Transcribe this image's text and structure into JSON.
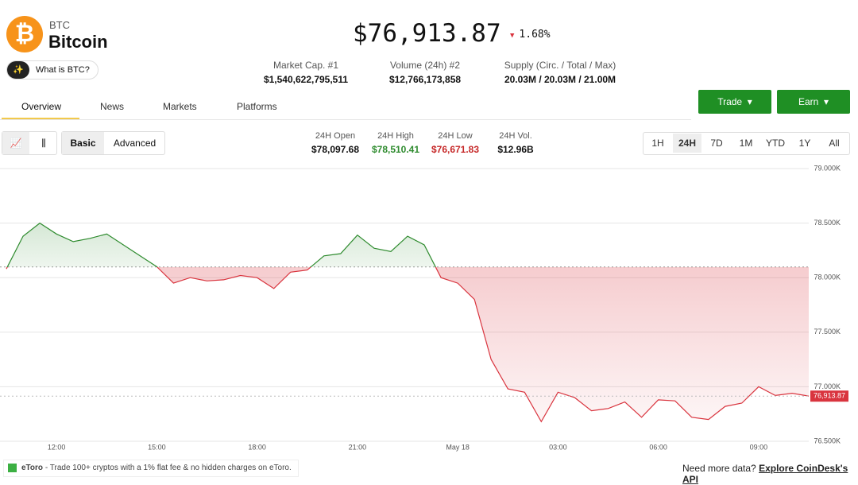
{
  "header": {
    "symbol": "BTC",
    "name": "Bitcoin",
    "ask": "What is BTC?",
    "price": "$76,913.87",
    "change": "1.68%"
  },
  "stats": [
    {
      "label": "Market Cap. #1",
      "value": "$1,540,622,795,511"
    },
    {
      "label": "Volume (24h) #2",
      "value": "$12,766,173,858"
    },
    {
      "label": "Supply (Circ. / Total / Max)",
      "value": "20.03M / 20.03M / 21.00M"
    }
  ],
  "tabs": [
    "Overview",
    "News",
    "Markets",
    "Platforms"
  ],
  "buttons": [
    "Trade",
    "Earn"
  ],
  "modes": [
    "Basic",
    "Advanced"
  ],
  "range_stats": [
    {
      "label": "24H Open",
      "value": "$78,097.68"
    },
    {
      "label": "24H High",
      "value": "$78,510.41"
    },
    {
      "label": "24H Low",
      "value": "$76,671.83"
    },
    {
      "label": "24H Vol.",
      "value": "$12.96B"
    }
  ],
  "ranges": [
    "1H",
    "24H",
    "7D",
    "1M",
    "YTD",
    "1Y",
    "All"
  ],
  "chart_data": {
    "type": "line",
    "categories": [
      null,
      null,
      null,
      "12:00",
      null,
      null,
      null,
      null,
      null,
      "15:00",
      null,
      null,
      null,
      null,
      null,
      "18:00",
      null,
      null,
      null,
      null,
      null,
      "21:00",
      null,
      null,
      null,
      null,
      null,
      "May 18",
      null,
      null,
      null,
      null,
      null,
      "03:00",
      null,
      null,
      null,
      null,
      null,
      "06:00",
      null,
      null,
      null,
      null,
      null,
      "09:00",
      null,
      null,
      null
    ],
    "values": [
      78080,
      78380,
      78500,
      78400,
      78330,
      78360,
      78400,
      78300,
      78200,
      78100,
      77950,
      78000,
      77970,
      77980,
      78020,
      78000,
      77900,
      78050,
      78070,
      78200,
      78220,
      78390,
      78270,
      78240,
      78380,
      78300,
      78000,
      77950,
      77800,
      77250,
      76980,
      76950,
      76680,
      76950,
      76900,
      76780,
      76800,
      76860,
      76720,
      76880,
      76870,
      76720,
      76700,
      76820,
      76850,
      77000,
      76920,
      76940,
      76913.87
    ],
    "value_labels": [
      null,
      null,
      null,
      null,
      null,
      null,
      null,
      null,
      null,
      null,
      null,
      null,
      null,
      null,
      null,
      null,
      null,
      null,
      null,
      null,
      null,
      null,
      null,
      null,
      null,
      null,
      null,
      null,
      null,
      null,
      null,
      null,
      null,
      null,
      null,
      null,
      null,
      null,
      null,
      null,
      null,
      null,
      null,
      null,
      null,
      null,
      null,
      null,
      "76,913.87"
    ],
    "open": 78097.68,
    "up_color": "#2e8b2e",
    "down_color": "#d9343e",
    "ylim": [
      76500,
      79000
    ],
    "yticks": [
      {
        "value": 76500,
        "label": "76.500K"
      },
      {
        "value": 77000,
        "label": "77.000K"
      },
      {
        "value": 77500,
        "label": "77.500K"
      },
      {
        "value": 78000,
        "label": "78.000K"
      },
      {
        "value": 78500,
        "label": "78.500K"
      },
      {
        "value": 79000,
        "label": "79.000K"
      }
    ],
    "grid": true
  },
  "footer": {
    "ad_brand": "eToro",
    "ad_text": "- Trade 100+ cryptos with a 1% flat fee & no hidden charges on eToro.",
    "prompt": "Need more data?",
    "link": "Explore CoinDesk's API"
  }
}
